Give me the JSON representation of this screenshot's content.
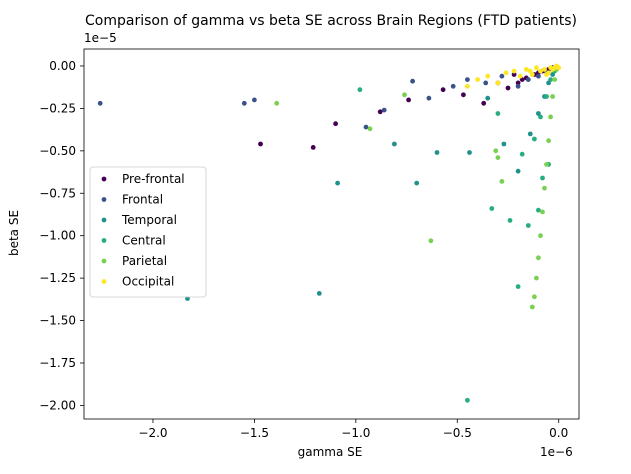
{
  "chart_data": {
    "type": "scatter",
    "title": "Comparison of gamma vs beta SE across Brain Regions (FTD patients)",
    "xlabel": "gamma SE",
    "ylabel": "beta SE",
    "x_offset_text": "1e−6",
    "y_offset_text": "1e−5",
    "xlim": [
      -2.34,
      0.1
    ],
    "ylim": [
      -2.08,
      0.1
    ],
    "xticks": [
      -2.0,
      -1.5,
      -1.0,
      -0.5,
      0.0
    ],
    "xtick_labels": [
      "−2.0",
      "−1.5",
      "−1.0",
      "−0.5",
      "0.0"
    ],
    "yticks": [
      0.0,
      -0.25,
      -0.5,
      -0.75,
      -1.0,
      -1.25,
      -1.5,
      -1.75,
      -2.0
    ],
    "ytick_labels": [
      "0.00",
      "−0.25",
      "−0.50",
      "−0.75",
      "−1.00",
      "−1.25",
      "−1.50",
      "−1.75",
      "−2.00"
    ],
    "grid": false,
    "legend_position": "center-left",
    "series": [
      {
        "name": "Pre-frontal",
        "color": "#440154",
        "x": [
          -1.47,
          -1.21,
          -1.1,
          -0.88,
          -0.74,
          -0.57,
          -0.47,
          -0.37,
          -0.3,
          -0.25,
          -0.2,
          -0.16,
          -0.12,
          -0.08,
          -0.05,
          -0.03,
          -0.02,
          -0.1,
          -0.18,
          -0.22
        ],
        "y": [
          -0.46,
          -0.48,
          -0.34,
          -0.27,
          -0.2,
          -0.14,
          -0.17,
          -0.22,
          -0.1,
          -0.13,
          -0.1,
          -0.07,
          -0.05,
          -0.03,
          -0.02,
          -0.01,
          -0.02,
          -0.04,
          -0.08,
          -0.05
        ]
      },
      {
        "name": "Frontal",
        "color": "#3b528b",
        "x": [
          -2.26,
          -1.55,
          -1.5,
          -0.95,
          -0.86,
          -0.72,
          -0.64,
          -0.52,
          -0.45,
          -0.36,
          -0.28,
          -0.2,
          -0.15,
          -0.1,
          -0.06,
          -0.03
        ],
        "y": [
          -0.22,
          -0.22,
          -0.2,
          -0.36,
          -0.26,
          -0.09,
          -0.19,
          -0.12,
          -0.08,
          -0.1,
          -0.06,
          -0.12,
          -0.08,
          -0.06,
          -0.04,
          -0.02
        ]
      },
      {
        "name": "Temporal",
        "color": "#21918c",
        "x": [
          -1.83,
          -1.18,
          -1.09,
          -0.81,
          -0.7,
          -0.6,
          -0.44,
          -0.35,
          -0.27,
          -0.2,
          -0.14,
          -0.1,
          -0.07,
          -0.05,
          -0.03,
          -0.02
        ],
        "y": [
          -1.37,
          -1.34,
          -0.69,
          -0.46,
          -0.69,
          -0.51,
          -0.51,
          -0.19,
          -0.46,
          -0.62,
          -0.4,
          -0.28,
          -0.18,
          -0.1,
          -0.05,
          -0.02
        ]
      },
      {
        "name": "Central",
        "color": "#27ad81",
        "x": [
          -0.45,
          -0.33,
          -0.24,
          -0.2,
          -0.15,
          -0.1,
          -0.08,
          -0.05,
          -0.98,
          -0.3,
          -0.18,
          -0.12,
          -0.09,
          -0.06,
          -0.04,
          -0.02
        ],
        "y": [
          -1.97,
          -0.84,
          -0.91,
          -1.3,
          -0.94,
          -0.85,
          -0.66,
          -0.58,
          -0.14,
          -0.28,
          -0.52,
          -0.43,
          -0.3,
          -0.18,
          -0.08,
          -0.03
        ]
      },
      {
        "name": "Parietal",
        "color": "#7ad151",
        "x": [
          -1.39,
          -0.93,
          -0.76,
          -0.63,
          -0.31,
          -0.3,
          -0.28,
          -0.13,
          -0.12,
          -0.11,
          -0.1,
          -0.09,
          -0.08,
          -0.07,
          -0.06,
          -0.05,
          -0.04,
          -0.03,
          -0.02,
          -0.01
        ],
        "y": [
          -0.22,
          -0.37,
          -0.17,
          -1.03,
          -0.5,
          -0.54,
          -0.68,
          -1.42,
          -1.36,
          -1.25,
          -1.13,
          -1.0,
          -0.86,
          -0.72,
          -0.58,
          -0.44,
          -0.3,
          -0.18,
          -0.08,
          -0.02
        ]
      },
      {
        "name": "Occipital",
        "color": "#fde725",
        "x": [
          -0.45,
          -0.4,
          -0.35,
          -0.3,
          -0.26,
          -0.22,
          -0.19,
          -0.16,
          -0.13,
          -0.11,
          -0.09,
          -0.07,
          -0.05,
          -0.04,
          -0.03,
          -0.02,
          -0.01,
          0.0,
          -0.06,
          -0.14
        ],
        "y": [
          -0.12,
          -0.08,
          -0.06,
          -0.1,
          -0.04,
          -0.03,
          -0.06,
          -0.02,
          -0.05,
          -0.01,
          -0.03,
          -0.02,
          -0.04,
          -0.01,
          -0.02,
          -0.01,
          0.0,
          -0.01,
          -0.05,
          -0.03
        ]
      }
    ]
  }
}
